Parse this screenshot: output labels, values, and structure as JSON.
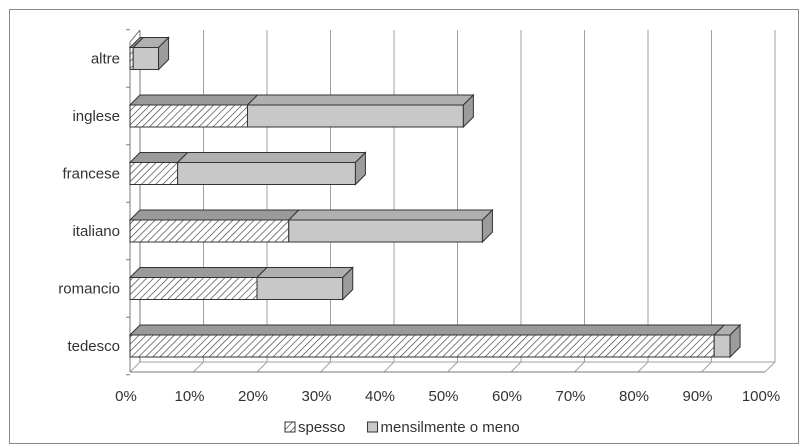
{
  "chart_data": {
    "type": "bar",
    "orientation": "horizontal",
    "stacked": true,
    "three_d": true,
    "categories": [
      "tedesco",
      "romancio",
      "italiano",
      "francese",
      "inglese",
      "altre"
    ],
    "series": [
      {
        "name": "spesso",
        "values": [
          92,
          20,
          25,
          7.5,
          18.5,
          0.5
        ],
        "pattern": "diagonal-hatch"
      },
      {
        "name": "mensilmente o meno",
        "values": [
          2.5,
          13.5,
          30.5,
          28,
          34,
          4
        ],
        "pattern": "solid-gray"
      }
    ],
    "x_ticks": [
      "0%",
      "10%",
      "20%",
      "30%",
      "40%",
      "50%",
      "60%",
      "70%",
      "80%",
      "90%",
      "100%"
    ],
    "xlim": [
      0,
      100
    ],
    "grid": true,
    "legend_position": "bottom",
    "colors": {
      "solid_fill": "#c8c8c8",
      "hatch_line": "#3a3a3a",
      "edge": "#333333",
      "grid": "#a0a0a0"
    }
  }
}
